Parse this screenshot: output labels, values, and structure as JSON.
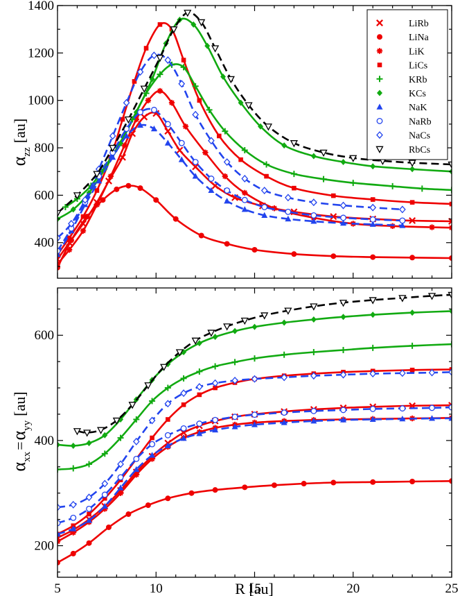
{
  "chart_data": [
    {
      "type": "line",
      "panel": "top",
      "ylabel": "α",
      "ylabel_sub": "zz",
      "ylabel_unit": "[au]",
      "xlabel": "",
      "xlim": [
        5,
        25
      ],
      "ylim": [
        250,
        1400
      ],
      "yticks": [
        400,
        600,
        800,
        1000,
        1200,
        1400
      ],
      "yticklabels": [
        "400",
        "600",
        "800",
        "1000",
        "1200",
        "1400"
      ],
      "xticks": [
        5,
        10,
        15,
        20,
        25
      ],
      "legend_position": "top-right",
      "legend": [
        "LiRb",
        "LiNa",
        "LiK",
        "LiCs",
        "KRb",
        "KCs",
        "NaK",
        "NaRb",
        "NaCs",
        "RbCs"
      ],
      "series": [
        {
          "name": "LiRb",
          "color": "#ee0000",
          "dash": false,
          "marker": "x",
          "x": [
            5,
            5.6,
            6.3,
            7,
            7.6,
            8.3,
            8.8,
            9.4,
            10,
            10.6,
            11.2,
            12,
            13,
            14,
            15.4,
            17,
            19,
            21,
            23,
            25
          ],
          "y": [
            330,
            400,
            480,
            570,
            660,
            760,
            860,
            930,
            945,
            870,
            790,
            720,
            640,
            590,
            555,
            530,
            510,
            500,
            493,
            490
          ]
        },
        {
          "name": "LiNa",
          "color": "#ee0000",
          "dash": false,
          "marker": "circle",
          "x": [
            5,
            5.7,
            6.5,
            7.3,
            8,
            8.6,
            9.2,
            10,
            11,
            12.3,
            13.6,
            15,
            17,
            19,
            21,
            23,
            25
          ],
          "y": [
            295,
            410,
            510,
            580,
            625,
            640,
            630,
            580,
            500,
            430,
            395,
            370,
            352,
            343,
            339,
            337,
            335
          ]
        },
        {
          "name": "LiK",
          "color": "#ee0000",
          "dash": false,
          "marker": "asterisk",
          "x": [
            5,
            5.6,
            6.3,
            7,
            7.7,
            8.4,
            9,
            9.6,
            10.2,
            10.8,
            11.5,
            12.5,
            13.5,
            14.5,
            16,
            18,
            20,
            22,
            24,
            25
          ],
          "y": [
            310,
            370,
            450,
            560,
            680,
            810,
            920,
            1000,
            1040,
            990,
            890,
            780,
            680,
            610,
            545,
            505,
            480,
            470,
            465,
            463
          ]
        },
        {
          "name": "LiCs",
          "color": "#ee0000",
          "dash": false,
          "marker": "square",
          "x": [
            5,
            5.6,
            6.3,
            7,
            7.7,
            8.3,
            8.9,
            9.5,
            10.2,
            10.8,
            11.4,
            12.2,
            13.2,
            14.3,
            15.6,
            17,
            19,
            21,
            23,
            25
          ],
          "y": [
            350,
            420,
            510,
            620,
            760,
            920,
            1080,
            1220,
            1320,
            1300,
            1170,
            1000,
            850,
            750,
            680,
            630,
            598,
            582,
            570,
            563
          ]
        },
        {
          "name": "KRb",
          "color": "#11aa11",
          "dash": false,
          "marker": "plus",
          "x": [
            5.4,
            6,
            6.7,
            7.4,
            8.1,
            8.8,
            9.5,
            10.2,
            10.8,
            11.4,
            12,
            12.7,
            13.5,
            14.5,
            15.6,
            17,
            18.5,
            20,
            22,
            23.5,
            25
          ],
          "y": [
            550,
            585,
            640,
            720,
            810,
            920,
            1030,
            1110,
            1150,
            1140,
            1060,
            960,
            870,
            790,
            730,
            690,
            668,
            652,
            638,
            628,
            622
          ]
        },
        {
          "name": "KCs",
          "color": "#11aa11",
          "dash": false,
          "marker": "diamond",
          "x": [
            5,
            5.8,
            6.6,
            7.4,
            8.2,
            9,
            9.8,
            10.5,
            11.2,
            11.9,
            12.6,
            13.4,
            14.3,
            15.3,
            16.5,
            18,
            19.5,
            21,
            23,
            25
          ],
          "y": [
            500,
            540,
            610,
            710,
            820,
            950,
            1090,
            1240,
            1340,
            1320,
            1230,
            1100,
            990,
            890,
            810,
            765,
            740,
            722,
            710,
            700
          ]
        },
        {
          "name": "NaK",
          "color": "#2244ee",
          "dash": true,
          "marker": "triangle-up",
          "x": [
            5,
            5.7,
            6.4,
            7.1,
            7.8,
            8.5,
            9.2,
            9.9,
            10.6,
            11.3,
            12,
            12.8,
            13.6,
            14.5,
            15.5,
            16.7,
            18,
            19.5,
            21,
            22.5
          ],
          "y": [
            350,
            450,
            560,
            660,
            760,
            850,
            895,
            880,
            820,
            750,
            680,
            620,
            575,
            540,
            515,
            500,
            490,
            482,
            477,
            472
          ]
        },
        {
          "name": "NaRb",
          "color": "#2244ee",
          "dash": true,
          "marker": "circle-open",
          "x": [
            5,
            5.7,
            6.4,
            7.1,
            7.8,
            8.5,
            9.2,
            9.9,
            10.6,
            11.3,
            12,
            12.8,
            13.6,
            14.5,
            15.5,
            16.7,
            18,
            19.5,
            21,
            22.5
          ],
          "y": [
            365,
            460,
            570,
            680,
            780,
            880,
            950,
            960,
            900,
            820,
            740,
            670,
            620,
            580,
            550,
            530,
            515,
            505,
            498,
            493
          ]
        },
        {
          "name": "NaCs",
          "color": "#2244ee",
          "dash": true,
          "marker": "diamond-open",
          "x": [
            5,
            5.7,
            6.4,
            7.1,
            7.8,
            8.5,
            9.2,
            9.9,
            10.6,
            11.3,
            12,
            12.8,
            13.6,
            14.5,
            15.5,
            16.7,
            18,
            19.5,
            21,
            22.5
          ],
          "y": [
            420,
            480,
            580,
            710,
            850,
            990,
            1120,
            1190,
            1170,
            1070,
            940,
            830,
            740,
            670,
            620,
            590,
            570,
            557,
            548,
            540
          ]
        },
        {
          "name": "RbCs",
          "color": "#000000",
          "dash": true,
          "marker": "triangle-down-open",
          "x": [
            5,
            6,
            7,
            7.8,
            8.6,
            9.4,
            10.2,
            10.9,
            11.6,
            12.3,
            13,
            13.8,
            14.7,
            15.7,
            17,
            18.5,
            20,
            21.5,
            23,
            25
          ],
          "y": [
            525,
            600,
            690,
            800,
            920,
            1050,
            1180,
            1300,
            1370,
            1330,
            1220,
            1090,
            980,
            890,
            820,
            780,
            757,
            745,
            737,
            730
          ]
        }
      ]
    },
    {
      "type": "line",
      "panel": "bottom",
      "ylabel": "α",
      "ylabel_sub1": "xx",
      "ylabel_eq": "=",
      "ylabel_alpha2": "α",
      "ylabel_sub2": "yy",
      "ylabel_unit": "[au]",
      "xlabel": "R [au]",
      "xlim": [
        5,
        25
      ],
      "ylim": [
        140,
        690
      ],
      "yticks": [
        200,
        400,
        600
      ],
      "yticklabels": [
        "200",
        "400",
        "600"
      ],
      "xticks": [
        5,
        10,
        15,
        20,
        25
      ],
      "xticklabels": [
        "5",
        "10",
        "15",
        "20",
        "25"
      ],
      "series": [
        {
          "name": "LiRb",
          "color": "#ee0000",
          "dash": false,
          "marker": "x",
          "x": [
            5,
            5.8,
            6.6,
            7.4,
            8.2,
            9,
            9.8,
            10.6,
            11.4,
            12.2,
            13,
            14,
            15,
            16.5,
            18,
            19.5,
            21,
            23,
            25
          ],
          "y": [
            215,
            230,
            250,
            275,
            305,
            340,
            370,
            395,
            415,
            428,
            437,
            445,
            450,
            455,
            459,
            462,
            464,
            466,
            467
          ]
        },
        {
          "name": "LiNa",
          "color": "#ee0000",
          "dash": false,
          "marker": "circle",
          "x": [
            5,
            5.8,
            6.6,
            7.6,
            8.6,
            9.6,
            10.6,
            11.8,
            13,
            14.5,
            16,
            17.5,
            19,
            21,
            23,
            25
          ],
          "y": [
            168,
            185,
            205,
            235,
            260,
            277,
            290,
            300,
            306,
            311,
            315,
            318,
            320,
            321,
            322,
            323
          ]
        },
        {
          "name": "LiK",
          "color": "#ee0000",
          "dash": false,
          "marker": "asterisk",
          "x": [
            5,
            5.8,
            6.6,
            7.4,
            8.2,
            9,
            9.8,
            10.6,
            11.4,
            12.2,
            13,
            14,
            15,
            16.5,
            18,
            19.5,
            21,
            23,
            25
          ],
          "y": [
            208,
            225,
            245,
            270,
            300,
            335,
            365,
            388,
            405,
            416,
            424,
            430,
            434,
            437,
            439,
            440,
            441,
            442,
            443
          ]
        },
        {
          "name": "LiCs",
          "color": "#ee0000",
          "dash": false,
          "marker": "square",
          "x": [
            5,
            5.8,
            6.6,
            7.4,
            8.2,
            9,
            9.8,
            10.6,
            11.4,
            12.2,
            13,
            14,
            15,
            16.5,
            18,
            19.5,
            21,
            23,
            25
          ],
          "y": [
            222,
            238,
            260,
            290,
            325,
            365,
            405,
            440,
            468,
            487,
            500,
            510,
            517,
            523,
            527,
            530,
            532,
            534,
            535
          ]
        },
        {
          "name": "KRb",
          "color": "#11aa11",
          "dash": false,
          "marker": "plus",
          "x": [
            5,
            5.8,
            6.6,
            7.4,
            8.2,
            9,
            9.8,
            10.6,
            11.4,
            12.2,
            13,
            14,
            15,
            16.5,
            18,
            19.5,
            21,
            23,
            25
          ],
          "y": [
            345,
            347,
            355,
            375,
            405,
            440,
            475,
            500,
            518,
            531,
            541,
            549,
            556,
            563,
            568,
            572,
            576,
            580,
            583
          ]
        },
        {
          "name": "KCs",
          "color": "#11aa11",
          "dash": false,
          "marker": "diamond",
          "x": [
            5,
            5.8,
            6.6,
            7.4,
            8.2,
            9,
            9.8,
            10.6,
            11.4,
            12.2,
            13,
            14,
            15,
            16.5,
            18,
            19.5,
            21,
            23,
            25
          ],
          "y": [
            392,
            390,
            395,
            410,
            440,
            478,
            515,
            545,
            568,
            585,
            597,
            608,
            616,
            624,
            630,
            635,
            639,
            643,
            646
          ]
        },
        {
          "name": "NaK",
          "color": "#2244ee",
          "dash": true,
          "marker": "triangle-up",
          "x": [
            5,
            5.8,
            6.6,
            7.4,
            8.2,
            9,
            9.8,
            10.6,
            11.4,
            12.2,
            13,
            14,
            15,
            16.5,
            18,
            19.5,
            21,
            22.5,
            24,
            25
          ],
          "y": [
            222,
            232,
            248,
            275,
            310,
            345,
            372,
            390,
            404,
            413,
            420,
            426,
            430,
            434,
            437,
            439,
            440,
            441,
            442,
            442
          ]
        },
        {
          "name": "NaRb",
          "color": "#2244ee",
          "dash": true,
          "marker": "circle-open",
          "x": [
            5,
            5.8,
            6.6,
            7.4,
            8.2,
            9,
            9.8,
            10.6,
            11.4,
            12.2,
            13,
            14,
            15,
            16.5,
            18,
            19.5,
            21,
            22.5,
            24,
            25
          ],
          "y": [
            243,
            253,
            270,
            297,
            330,
            365,
            393,
            410,
            423,
            432,
            439,
            445,
            449,
            453,
            456,
            458,
            460,
            461,
            462,
            463
          ]
        },
        {
          "name": "NaCs",
          "color": "#2244ee",
          "dash": true,
          "marker": "diamond-open",
          "x": [
            5,
            5.8,
            6.6,
            7.4,
            8.2,
            9,
            9.8,
            10.6,
            11.4,
            12.2,
            13,
            14,
            15,
            16.5,
            18,
            19.5,
            21,
            22.5,
            24,
            25
          ],
          "y": [
            273,
            278,
            292,
            318,
            355,
            398,
            438,
            470,
            490,
            502,
            509,
            514,
            517,
            520,
            523,
            525,
            527,
            528,
            529,
            530
          ]
        },
        {
          "name": "RbCs",
          "color": "#000000",
          "dash": true,
          "marker": "triangle-down-open",
          "x": [
            6,
            6.5,
            7.2,
            8,
            8.8,
            9.6,
            10.4,
            11.2,
            12,
            12.8,
            13.6,
            14.5,
            15.5,
            16.7,
            18,
            19.5,
            21,
            22.5,
            24,
            25
          ],
          "y": [
            418,
            415,
            420,
            438,
            468,
            505,
            540,
            568,
            590,
            605,
            617,
            628,
            638,
            647,
            655,
            662,
            667,
            671,
            675,
            677
          ]
        }
      ]
    }
  ]
}
